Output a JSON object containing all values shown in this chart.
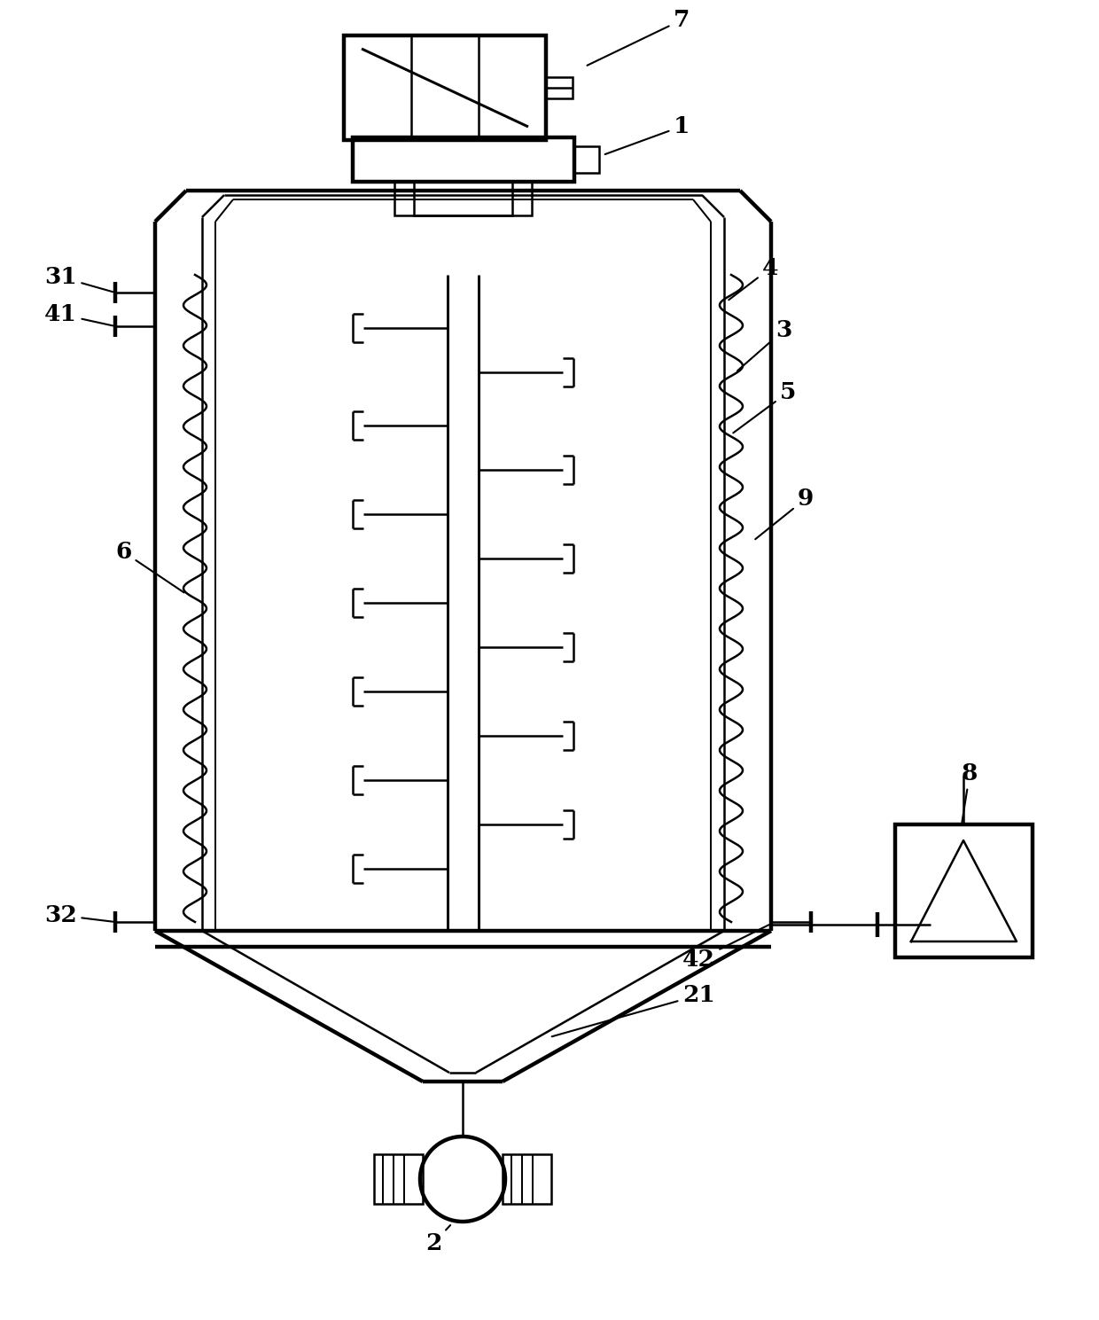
{
  "fig_width": 12.4,
  "fig_height": 14.89,
  "bg_color": "#ffffff",
  "line_color": "#000000",
  "lw": 1.8,
  "tlw": 3.2
}
